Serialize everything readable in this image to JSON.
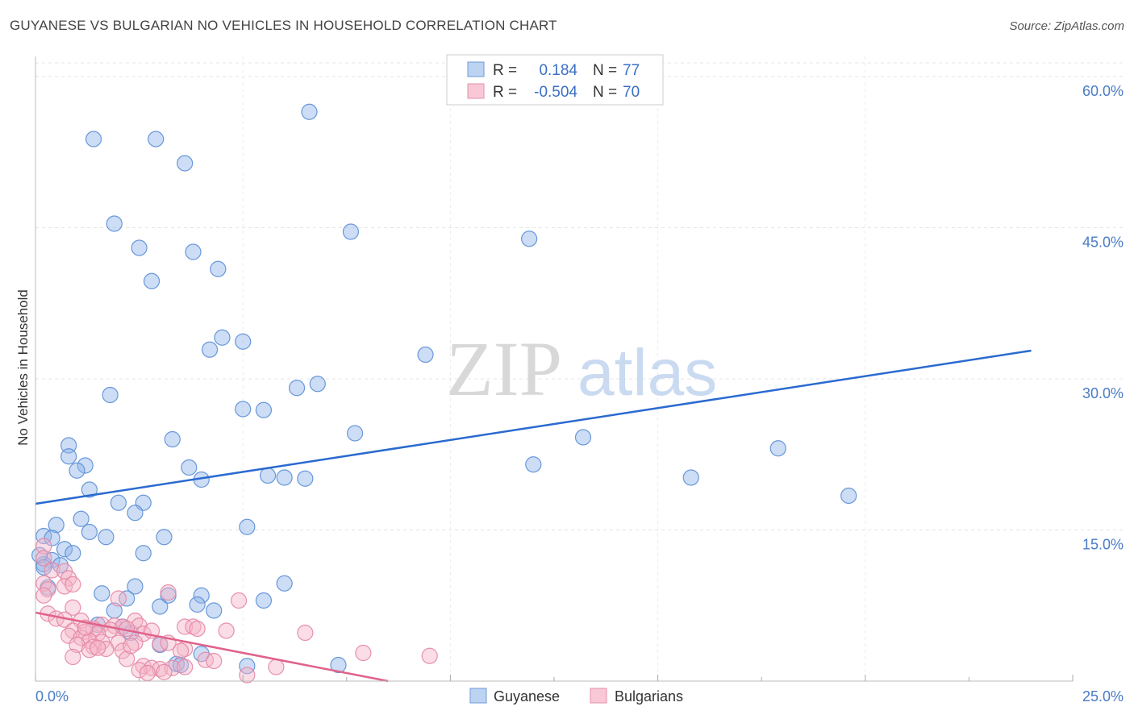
{
  "title": "GUYANESE VS BULGARIAN NO VEHICLES IN HOUSEHOLD CORRELATION CHART",
  "source": "Source: ZipAtlas.com",
  "watermark": {
    "zip": "ZIP",
    "atlas": "atlas"
  },
  "legend": {
    "r_label": "R =",
    "n_label": "N =",
    "series": [
      {
        "r": "0.184",
        "n": "77"
      },
      {
        "r": "-0.504",
        "n": "70"
      }
    ]
  },
  "chart_data": {
    "type": "scatter",
    "title": "GUYANESE VS BULGARIAN NO VEHICLES IN HOUSEHOLD CORRELATION CHART",
    "ylabel": "No Vehicles in Household",
    "xlabel": "",
    "xlim": [
      0,
      25
    ],
    "ylim": [
      0,
      62
    ],
    "x_ticks": [
      "0.0%",
      "25.0%"
    ],
    "y_ticks": [
      {
        "value": 15,
        "label": "15.0%"
      },
      {
        "value": 30,
        "label": "30.0%"
      },
      {
        "value": 45,
        "label": "45.0%"
      },
      {
        "value": 60,
        "label": "60.0%"
      }
    ],
    "grid": true,
    "series": [
      {
        "name": "Guyanese",
        "color": "#8fb4e8",
        "edge": "#5b8ed6",
        "trend": {
          "x": [
            0,
            24
          ],
          "y": [
            17.6,
            32.8
          ],
          "color": "#2a6ad0"
        },
        "points": [
          [
            1.4,
            53.8
          ],
          [
            2.9,
            53.8
          ],
          [
            6.6,
            56.5
          ],
          [
            3.6,
            51.4
          ],
          [
            1.9,
            45.4
          ],
          [
            7.6,
            44.6
          ],
          [
            11.9,
            43.9
          ],
          [
            2.5,
            43.0
          ],
          [
            3.8,
            42.6
          ],
          [
            4.4,
            40.9
          ],
          [
            2.8,
            39.7
          ],
          [
            4.5,
            34.1
          ],
          [
            5.0,
            33.7
          ],
          [
            4.2,
            32.9
          ],
          [
            9.4,
            32.4
          ],
          [
            1.8,
            28.4
          ],
          [
            6.8,
            29.5
          ],
          [
            6.3,
            29.1
          ],
          [
            5.0,
            27.0
          ],
          [
            5.5,
            26.9
          ],
          [
            7.7,
            24.6
          ],
          [
            3.3,
            24.0
          ],
          [
            13.2,
            24.2
          ],
          [
            17.9,
            23.1
          ],
          [
            0.8,
            23.4
          ],
          [
            0.8,
            22.3
          ],
          [
            1.2,
            21.4
          ],
          [
            1.0,
            20.9
          ],
          [
            3.7,
            21.2
          ],
          [
            5.6,
            20.4
          ],
          [
            6.0,
            20.2
          ],
          [
            6.5,
            20.1
          ],
          [
            4.0,
            20.0
          ],
          [
            12.0,
            21.5
          ],
          [
            15.8,
            20.2
          ],
          [
            19.6,
            18.4
          ],
          [
            1.3,
            19.0
          ],
          [
            2.0,
            17.7
          ],
          [
            2.6,
            17.7
          ],
          [
            2.4,
            16.7
          ],
          [
            1.1,
            16.1
          ],
          [
            0.5,
            15.5
          ],
          [
            5.1,
            15.3
          ],
          [
            1.3,
            14.8
          ],
          [
            1.7,
            14.3
          ],
          [
            3.1,
            14.3
          ],
          [
            0.2,
            14.4
          ],
          [
            0.4,
            14.2
          ],
          [
            0.7,
            13.1
          ],
          [
            0.9,
            12.7
          ],
          [
            2.6,
            12.7
          ],
          [
            0.4,
            12.0
          ],
          [
            0.2,
            11.6
          ],
          [
            0.6,
            11.5
          ],
          [
            0.1,
            12.5
          ],
          [
            0.2,
            11.3
          ],
          [
            2.4,
            9.4
          ],
          [
            6.0,
            9.7
          ],
          [
            1.6,
            8.7
          ],
          [
            4.0,
            8.5
          ],
          [
            2.2,
            8.2
          ],
          [
            3.2,
            8.5
          ],
          [
            3.0,
            7.4
          ],
          [
            3.9,
            7.6
          ],
          [
            4.3,
            7.0
          ],
          [
            5.5,
            8.0
          ],
          [
            1.9,
            7.0
          ],
          [
            1.5,
            5.6
          ],
          [
            2.1,
            5.4
          ],
          [
            2.3,
            4.8
          ],
          [
            3.0,
            3.6
          ],
          [
            4.0,
            2.7
          ],
          [
            3.4,
            1.7
          ],
          [
            3.5,
            1.6
          ],
          [
            5.1,
            1.5
          ],
          [
            7.3,
            1.6
          ],
          [
            0.3,
            9.3
          ]
        ]
      },
      {
        "name": "Bulgarians",
        "color": "#f5b3c7",
        "edge": "#e486a4",
        "trend": {
          "x": [
            0,
            8.5
          ],
          "y": [
            6.8,
            0.0
          ],
          "color": "#e0628a"
        },
        "points": [
          [
            0.2,
            13.4
          ],
          [
            0.2,
            12.2
          ],
          [
            0.4,
            11.0
          ],
          [
            0.7,
            10.9
          ],
          [
            0.8,
            10.2
          ],
          [
            0.2,
            9.7
          ],
          [
            0.7,
            9.4
          ],
          [
            0.9,
            9.6
          ],
          [
            0.3,
            9.1
          ],
          [
            0.2,
            8.5
          ],
          [
            2.0,
            8.2
          ],
          [
            3.2,
            8.8
          ],
          [
            4.9,
            8.0
          ],
          [
            0.3,
            6.7
          ],
          [
            0.9,
            7.3
          ],
          [
            0.5,
            6.2
          ],
          [
            0.7,
            6.1
          ],
          [
            1.1,
            6.0
          ],
          [
            2.4,
            6.0
          ],
          [
            1.6,
            5.6
          ],
          [
            1.9,
            5.5
          ],
          [
            2.1,
            5.4
          ],
          [
            2.5,
            5.5
          ],
          [
            3.6,
            5.4
          ],
          [
            3.8,
            5.4
          ],
          [
            1.4,
            5.2
          ],
          [
            1.8,
            5.1
          ],
          [
            2.2,
            5.2
          ],
          [
            0.9,
            5.0
          ],
          [
            1.2,
            4.9
          ],
          [
            1.5,
            4.7
          ],
          [
            2.6,
            4.7
          ],
          [
            4.6,
            5.0
          ],
          [
            6.5,
            4.8
          ],
          [
            0.8,
            4.5
          ],
          [
            1.1,
            4.3
          ],
          [
            1.3,
            4.0
          ],
          [
            1.6,
            3.9
          ],
          [
            2.0,
            3.8
          ],
          [
            2.4,
            3.8
          ],
          [
            3.0,
            3.7
          ],
          [
            3.2,
            3.8
          ],
          [
            1.0,
            3.6
          ],
          [
            1.4,
            3.4
          ],
          [
            1.7,
            3.2
          ],
          [
            2.1,
            3.0
          ],
          [
            1.3,
            3.1
          ],
          [
            3.6,
            3.2
          ],
          [
            0.9,
            2.4
          ],
          [
            2.2,
            2.2
          ],
          [
            4.1,
            2.1
          ],
          [
            7.9,
            2.8
          ],
          [
            9.5,
            2.5
          ],
          [
            4.3,
            2.0
          ],
          [
            2.6,
            1.5
          ],
          [
            2.8,
            1.3
          ],
          [
            3.0,
            1.2
          ],
          [
            3.3,
            1.3
          ],
          [
            3.6,
            1.4
          ],
          [
            5.8,
            1.4
          ],
          [
            2.5,
            1.1
          ],
          [
            3.1,
            0.9
          ],
          [
            2.7,
            0.8
          ],
          [
            5.1,
            0.6
          ],
          [
            1.5,
            3.3
          ],
          [
            2.3,
            3.5
          ],
          [
            3.5,
            3.0
          ],
          [
            1.2,
            5.3
          ],
          [
            2.8,
            5.0
          ],
          [
            3.9,
            5.2
          ]
        ]
      }
    ]
  }
}
